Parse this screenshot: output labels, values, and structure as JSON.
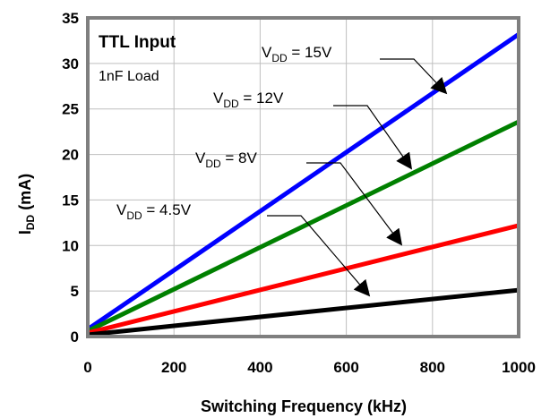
{
  "chart_data": {
    "type": "line",
    "title": "TTL Input",
    "subtitle": "1nF Load",
    "xlabel": "Switching Frequency (kHz)",
    "ylabel_main": "I",
    "ylabel_sub": "DD",
    "ylabel_unit": " (mA)",
    "xlim": [
      0,
      1000
    ],
    "ylim": [
      0,
      35
    ],
    "xticks": [
      0,
      200,
      400,
      600,
      800,
      1000
    ],
    "yticks": [
      0,
      5,
      10,
      15,
      20,
      25,
      30,
      35
    ],
    "grid": true,
    "series": [
      {
        "name": "VDD = 15V",
        "label_main": "V",
        "label_sub": "DD",
        "label_rest": " = 15V",
        "color": "#0000ff",
        "x": [
          0,
          1000
        ],
        "y": [
          0.8,
          33.2
        ]
      },
      {
        "name": "VDD = 12V",
        "label_main": "V",
        "label_sub": "DD",
        "label_rest": " = 12V",
        "color": "#008000",
        "x": [
          0,
          1000
        ],
        "y": [
          0.6,
          23.6
        ]
      },
      {
        "name": "VDD = 8V",
        "label_main": "V",
        "label_sub": "DD",
        "label_rest": " = 8V",
        "color": "#ff0000",
        "x": [
          0,
          1000
        ],
        "y": [
          0.4,
          12.2
        ]
      },
      {
        "name": "VDD = 4.5V",
        "label_main": "V",
        "label_sub": "DD",
        "label_rest": " = 4.5V",
        "color": "#000000",
        "x": [
          0,
          1000
        ],
        "y": [
          0.2,
          5.1
        ]
      }
    ]
  }
}
